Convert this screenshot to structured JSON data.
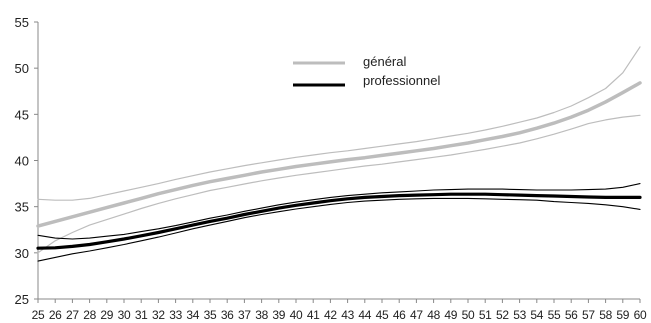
{
  "chart_data": {
    "type": "line",
    "x": [
      25,
      26,
      27,
      28,
      29,
      30,
      31,
      32,
      33,
      34,
      35,
      36,
      37,
      38,
      39,
      40,
      41,
      42,
      43,
      44,
      45,
      46,
      47,
      48,
      49,
      50,
      51,
      52,
      53,
      54,
      55,
      56,
      57,
      58,
      59,
      60
    ],
    "xlim": [
      25,
      60
    ],
    "ylim": [
      25,
      55
    ],
    "yticks": [
      25,
      30,
      35,
      40,
      45,
      50,
      55
    ],
    "grid": false,
    "legend": {
      "placement": "top-center",
      "entries": [
        "général",
        "professionnel"
      ]
    },
    "series": [
      {
        "name": "général",
        "color": "#bdbdbd",
        "role": "estimate",
        "values": [
          32.9,
          33.4,
          33.9,
          34.4,
          34.9,
          35.4,
          35.9,
          36.4,
          36.85,
          37.3,
          37.7,
          38.05,
          38.4,
          38.75,
          39.05,
          39.35,
          39.6,
          39.85,
          40.1,
          40.3,
          40.55,
          40.8,
          41.05,
          41.3,
          41.6,
          41.9,
          42.25,
          42.6,
          43.0,
          43.5,
          44.05,
          44.7,
          45.45,
          46.35,
          47.35,
          48.4
        ]
      },
      {
        "name": "",
        "color": "#bdbdbd",
        "role": "upper-bound",
        "values": [
          35.8,
          35.7,
          35.7,
          35.9,
          36.3,
          36.7,
          37.1,
          37.5,
          37.95,
          38.35,
          38.75,
          39.1,
          39.45,
          39.75,
          40.05,
          40.35,
          40.6,
          40.85,
          41.05,
          41.3,
          41.55,
          41.8,
          42.05,
          42.35,
          42.65,
          42.95,
          43.3,
          43.7,
          44.15,
          44.6,
          45.2,
          45.9,
          46.8,
          47.8,
          49.5,
          52.3
        ]
      },
      {
        "name": "",
        "color": "#bdbdbd",
        "role": "lower-bound",
        "values": [
          30.0,
          31.3,
          32.2,
          33.0,
          33.6,
          34.2,
          34.8,
          35.35,
          35.85,
          36.3,
          36.75,
          37.1,
          37.45,
          37.8,
          38.1,
          38.4,
          38.65,
          38.9,
          39.15,
          39.4,
          39.6,
          39.85,
          40.1,
          40.35,
          40.6,
          40.9,
          41.2,
          41.55,
          41.9,
          42.35,
          42.85,
          43.4,
          44.0,
          44.4,
          44.7,
          44.9
        ]
      },
      {
        "name": "professionnel",
        "color": "#000000",
        "role": "estimate",
        "values": [
          30.5,
          30.55,
          30.7,
          30.9,
          31.2,
          31.5,
          31.85,
          32.2,
          32.6,
          33.0,
          33.4,
          33.75,
          34.15,
          34.5,
          34.85,
          35.15,
          35.4,
          35.65,
          35.85,
          36.0,
          36.1,
          36.2,
          36.25,
          36.3,
          36.35,
          36.35,
          36.35,
          36.3,
          36.25,
          36.2,
          36.15,
          36.1,
          36.05,
          36.0,
          36.0,
          36.0
        ]
      },
      {
        "name": "",
        "color": "#000000",
        "role": "upper-bound",
        "values": [
          31.9,
          31.6,
          31.5,
          31.6,
          31.8,
          32.0,
          32.3,
          32.6,
          32.95,
          33.35,
          33.75,
          34.1,
          34.5,
          34.85,
          35.2,
          35.5,
          35.75,
          36.0,
          36.2,
          36.35,
          36.5,
          36.6,
          36.7,
          36.8,
          36.85,
          36.9,
          36.9,
          36.9,
          36.85,
          36.8,
          36.8,
          36.8,
          36.85,
          36.9,
          37.1,
          37.5
        ]
      },
      {
        "name": "",
        "color": "#000000",
        "role": "lower-bound",
        "values": [
          29.1,
          29.5,
          29.9,
          30.2,
          30.55,
          30.9,
          31.3,
          31.7,
          32.15,
          32.6,
          33.0,
          33.4,
          33.8,
          34.15,
          34.45,
          34.75,
          35.0,
          35.25,
          35.45,
          35.6,
          35.7,
          35.8,
          35.85,
          35.9,
          35.9,
          35.9,
          35.85,
          35.8,
          35.75,
          35.7,
          35.55,
          35.45,
          35.35,
          35.2,
          35.0,
          34.7
        ]
      }
    ]
  }
}
